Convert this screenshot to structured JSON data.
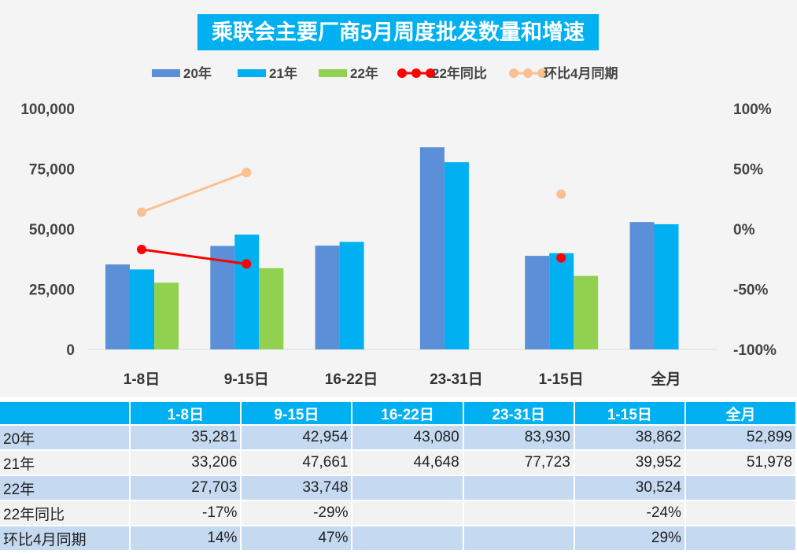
{
  "chart_data": {
    "type": "bar",
    "title": "乘联会主要厂商5月周度批发数量和增速",
    "categories": [
      "1-8日",
      "9-15日",
      "16-22日",
      "23-31日",
      "1-15日",
      "全月"
    ],
    "series": [
      {
        "name": "20年",
        "kind": "bar",
        "color": "#5b8fd8",
        "values": [
          35281,
          42954,
          43080,
          83930,
          38862,
          52899
        ]
      },
      {
        "name": "21年",
        "kind": "bar",
        "color": "#00b0f0",
        "values": [
          33206,
          47661,
          44648,
          77723,
          39952,
          51978
        ]
      },
      {
        "name": "22年",
        "kind": "bar",
        "color": "#92d050",
        "values": [
          27703,
          33748,
          null,
          null,
          30524,
          null
        ]
      },
      {
        "name": "22年同比",
        "kind": "line",
        "axis": "right",
        "color": "#ff0000",
        "values": [
          -17,
          -29,
          null,
          null,
          -24,
          null
        ]
      },
      {
        "name": "环比4月同期",
        "kind": "line",
        "axis": "right",
        "color": "#fac090",
        "values": [
          14,
          47,
          null,
          null,
          29,
          null
        ]
      }
    ],
    "ylim": [
      0,
      100000
    ],
    "yticks": [
      "0",
      "25,000",
      "50,000",
      "75,000",
      "100,000"
    ],
    "y2lim": [
      -100,
      100
    ],
    "y2ticks": [
      "-100%",
      "-50%",
      "0%",
      "50%",
      "100%"
    ],
    "legend": "top",
    "grid": false
  },
  "table": {
    "header": [
      "",
      "1-8日",
      "9-15日",
      "16-22日",
      "23-31日",
      "1-15日",
      "全月"
    ],
    "rows": [
      [
        "20年",
        "35,281",
        "42,954",
        "43,080",
        "83,930",
        "38,862",
        "52,899"
      ],
      [
        "21年",
        "33,206",
        "47,661",
        "44,648",
        "77,723",
        "39,952",
        "51,978"
      ],
      [
        "22年",
        "27,703",
        "33,748",
        "",
        "",
        "30,524",
        ""
      ],
      [
        "22年同比",
        "-17%",
        "-29%",
        "",
        "",
        "-24%",
        ""
      ],
      [
        "环比4月同期",
        "14%",
        "47%",
        "",
        "",
        "29%",
        ""
      ]
    ]
  }
}
